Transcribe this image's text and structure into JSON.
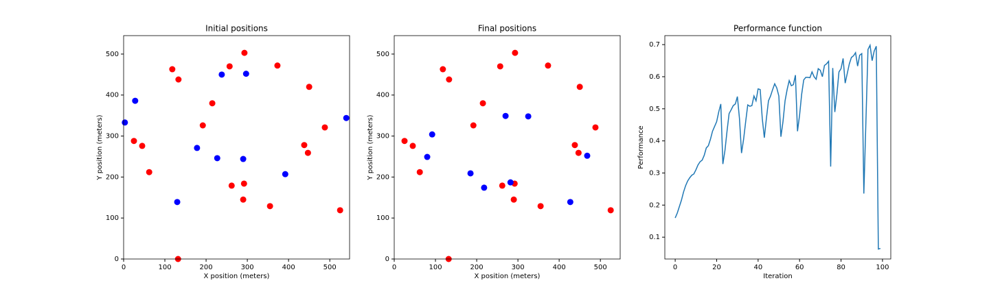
{
  "chart_data": [
    {
      "type": "scatter",
      "title": "Initial positions",
      "xlabel": "X position (meters)",
      "ylabel": "Y position (meters)",
      "xlim": [
        0,
        548
      ],
      "ylim": [
        0,
        545
      ],
      "xticks": [
        0,
        100,
        200,
        300,
        400,
        500
      ],
      "yticks": [
        0,
        100,
        200,
        300,
        400,
        500
      ],
      "series": [
        {
          "color": "#ff0000",
          "x": [
            118,
            133,
            257,
            293,
            373,
            450,
            215,
            192,
            25,
            45,
            62,
            488,
            438,
            447,
            262,
            292,
            290,
            355,
            525,
            132
          ],
          "y": [
            463,
            438,
            470,
            503,
            472,
            420,
            380,
            326,
            288,
            276,
            212,
            321,
            278,
            259,
            179,
            184,
            145,
            129,
            119,
            0
          ]
        },
        {
          "color": "#0000ff",
          "x": [
            238,
            297,
            28,
            3,
            540,
            178,
            227,
            290,
            392,
            130
          ],
          "y": [
            450,
            452,
            386,
            333,
            344,
            271,
            246,
            244,
            207,
            139
          ]
        }
      ]
    },
    {
      "type": "scatter",
      "title": "Final positions",
      "xlabel": "X position (meters)",
      "ylabel": "Y position (meters)",
      "xlim": [
        0,
        548
      ],
      "ylim": [
        0,
        545
      ],
      "xticks": [
        0,
        100,
        200,
        300,
        400,
        500
      ],
      "yticks": [
        0,
        100,
        200,
        300,
        400,
        500
      ],
      "series": [
        {
          "color": "#ff0000",
          "x": [
            118,
            133,
            257,
            293,
            373,
            450,
            215,
            192,
            25,
            45,
            62,
            488,
            438,
            447,
            262,
            292,
            290,
            355,
            525,
            132
          ],
          "y": [
            463,
            438,
            470,
            503,
            472,
            420,
            380,
            326,
            288,
            276,
            212,
            321,
            278,
            259,
            179,
            184,
            145,
            129,
            119,
            0
          ]
        },
        {
          "color": "#0000ff",
          "x": [
            270,
            325,
            92,
            80,
            185,
            218,
            282,
            468,
            427
          ],
          "y": [
            349,
            348,
            304,
            249,
            209,
            174,
            187,
            252,
            139
          ]
        }
      ]
    },
    {
      "type": "line",
      "title": "Performance function",
      "xlabel": "Iteration",
      "ylabel": "Performance",
      "color": "#1f77b4",
      "xlim": [
        -5,
        104
      ],
      "ylim": [
        0.032,
        0.728
      ],
      "xticks": [
        0,
        20,
        40,
        60,
        80,
        100
      ],
      "yticks": [
        0.1,
        0.2,
        0.3,
        0.4,
        0.5,
        0.6,
        0.7
      ],
      "x": [
        0,
        1,
        2,
        3,
        4,
        5,
        6,
        7,
        8,
        9,
        10,
        11,
        12,
        13,
        14,
        15,
        16,
        17,
        18,
        19,
        20,
        21,
        22,
        23,
        24,
        25,
        26,
        27,
        28,
        29,
        30,
        31,
        32,
        33,
        34,
        35,
        36,
        37,
        38,
        39,
        40,
        41,
        42,
        43,
        44,
        45,
        46,
        47,
        48,
        49,
        50,
        51,
        52,
        53,
        54,
        55,
        56,
        57,
        58,
        59,
        60,
        61,
        62,
        63,
        64,
        65,
        66,
        67,
        68,
        69,
        70,
        71,
        72,
        73,
        74,
        75,
        76,
        77,
        78,
        79,
        80,
        81,
        82,
        83,
        84,
        85,
        86,
        87,
        88,
        89,
        90,
        91,
        92,
        93,
        94,
        95,
        96,
        97,
        98,
        99
      ],
      "values": [
        0.16,
        0.175,
        0.195,
        0.215,
        0.24,
        0.26,
        0.275,
        0.285,
        0.293,
        0.297,
        0.31,
        0.325,
        0.335,
        0.34,
        0.355,
        0.378,
        0.385,
        0.405,
        0.43,
        0.445,
        0.46,
        0.49,
        0.515,
        0.328,
        0.37,
        0.43,
        0.485,
        0.497,
        0.51,
        0.515,
        0.538,
        0.47,
        0.362,
        0.405,
        0.46,
        0.512,
        0.508,
        0.51,
        0.54,
        0.525,
        0.562,
        0.56,
        0.47,
        0.41,
        0.47,
        0.525,
        0.54,
        0.56,
        0.578,
        0.565,
        0.54,
        0.413,
        0.46,
        0.525,
        0.56,
        0.588,
        0.572,
        0.575,
        0.605,
        0.43,
        0.48,
        0.545,
        0.59,
        0.598,
        0.598,
        0.597,
        0.615,
        0.6,
        0.592,
        0.625,
        0.62,
        0.6,
        0.635,
        0.64,
        0.648,
        0.32,
        0.627,
        0.49,
        0.545,
        0.615,
        0.625,
        0.657,
        0.58,
        0.61,
        0.64,
        0.66,
        0.665,
        0.675,
        0.633,
        0.667,
        0.672,
        0.236,
        0.46,
        0.685,
        0.698,
        0.65,
        0.68,
        0.695,
        0.063,
        0.065
      ]
    }
  ]
}
